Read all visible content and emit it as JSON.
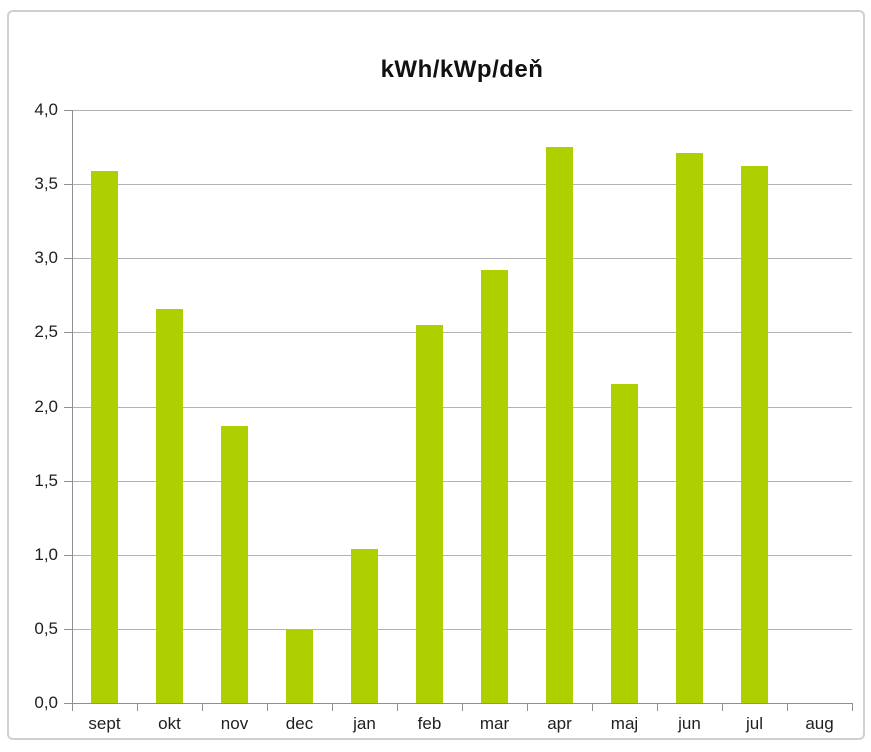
{
  "chart_data": {
    "type": "bar",
    "title": "kWh/kWp/deň",
    "categories": [
      "sept",
      "okt",
      "nov",
      "dec",
      "jan",
      "feb",
      "mar",
      "apr",
      "maj",
      "jun",
      "jul",
      "aug"
    ],
    "values": [
      3.59,
      2.66,
      1.87,
      0.49,
      1.04,
      2.55,
      2.92,
      3.75,
      2.15,
      3.71,
      3.62,
      0
    ],
    "xlabel": "",
    "ylabel": "",
    "ylim": [
      0,
      4
    ],
    "ytick_step": 0.5,
    "ytick_labels": [
      "0,0",
      "0,5",
      "1,0",
      "1,5",
      "2,0",
      "2,5",
      "3,0",
      "3,5",
      "4,0"
    ],
    "decimal_separator": ",",
    "grid": true,
    "legend": false,
    "bar_color": "#aed000"
  },
  "colors": {
    "bar": "#aed000",
    "gridline": "#b3b3b3",
    "axis": "#8f8f8f",
    "text": "#1f1f1f",
    "title_text": "#111111",
    "frame_border": "#d0d0d0",
    "background": "#ffffff"
  }
}
